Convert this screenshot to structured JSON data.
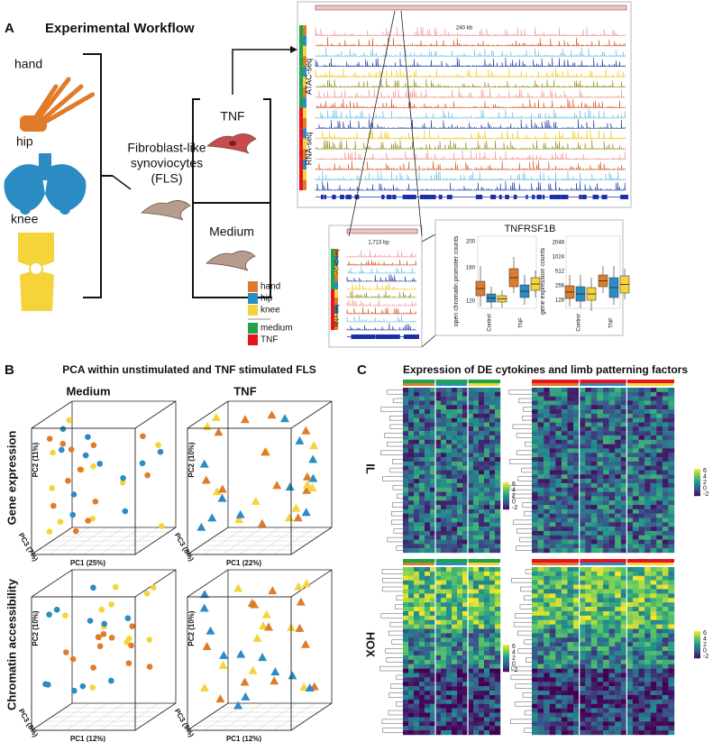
{
  "panel_a": {
    "letter": "A",
    "title": "Experimental Workflow",
    "joints": [
      "hand",
      "hip",
      "knee"
    ],
    "cells_label": [
      "Fibroblast-like",
      "synoviocytes",
      "(FLS)"
    ],
    "conditions": [
      "TNF",
      "Medium"
    ],
    "assays": [
      "ATAC-seq",
      "RNA-seq"
    ],
    "browser_scales": [
      "240 kb",
      "1,713 bp"
    ],
    "legend": [
      {
        "label": "hand",
        "color": "#e07b2a"
      },
      {
        "label": "hip",
        "color": "#2b8cc4"
      },
      {
        "label": "knee",
        "color": "#f5d33a"
      },
      {
        "label": "medium",
        "color": "#1fa34a"
      },
      {
        "label": "TNF",
        "color": "#e8141b"
      }
    ],
    "inset": {
      "title": "TNFRSF1B",
      "left_ylabel": "open chromatin promoter counts",
      "left_yticks": [
        "120",
        "160",
        "200"
      ],
      "right_ylabel": "gene expression counts",
      "right_yticks": [
        "128",
        "256",
        "512",
        "1024",
        "2048"
      ],
      "groups": [
        "Control",
        "TNF"
      ]
    }
  },
  "panel_b": {
    "letter": "B",
    "title": "PCA within unstimulated and TNF stimulated FLS",
    "columns": [
      "Medium",
      "TNF"
    ],
    "rows": [
      "Gene expression",
      "Chromatin accessibility"
    ],
    "plots": [
      {
        "pc2": "PC2 (11%)",
        "pc3": "PC3 (7%)",
        "pc1": "PC1 (25%)"
      },
      {
        "pc2": "PC2 (10%)",
        "pc3": "PC3 (8%)",
        "pc1": "PC1 (22%)"
      },
      {
        "pc2": "PC2 (10%)",
        "pc3": "PC3 (8%)",
        "pc1": "PC1 (12%)"
      },
      {
        "pc2": "PC2 (10%)",
        "pc3": "PC3 (9%)",
        "pc1": "PC1 (12%)"
      }
    ]
  },
  "panel_c": {
    "letter": "C",
    "title": "Expression of DE cytokines and limb patterning factors",
    "rows": [
      "IL",
      "HOX"
    ],
    "colorbar_ticks": [
      "6",
      "4",
      "2",
      "0",
      "-2"
    ]
  }
}
